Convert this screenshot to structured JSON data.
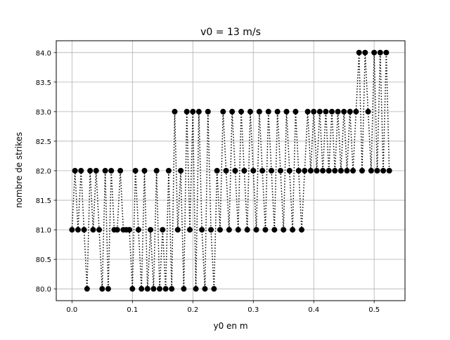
{
  "colors": {
    "marker": "#000000",
    "line": "#000000",
    "grid": "#b0b0b0",
    "axes": "#000000",
    "background": "#ffffff"
  },
  "chart_data": {
    "type": "line",
    "title": "v0 = 13 m/s",
    "xlabel": "y0 en m",
    "ylabel": "nombre de strikes",
    "xlim": [
      -0.026,
      0.551
    ],
    "ylim": [
      79.8,
      84.2
    ],
    "xticks": [
      0.0,
      0.1,
      0.2,
      0.3,
      0.4,
      0.5
    ],
    "xtick_labels": [
      "0.0",
      "0.1",
      "0.2",
      "0.3",
      "0.4",
      "0.5"
    ],
    "yticks": [
      80.0,
      80.5,
      81.0,
      81.5,
      82.0,
      82.5,
      83.0,
      83.5,
      84.0
    ],
    "ytick_labels": [
      "80.0",
      "80.5",
      "81.0",
      "81.5",
      "82.0",
      "82.5",
      "83.0",
      "83.5",
      "84.0"
    ],
    "grid": true,
    "legend": "none",
    "marker": "o",
    "linestyle": "dotted",
    "series": [
      {
        "x": [
          0.0,
          0.005,
          0.01,
          0.015,
          0.02,
          0.025,
          0.03,
          0.035,
          0.04,
          0.045,
          0.05,
          0.055,
          0.06,
          0.065,
          0.07,
          0.075,
          0.08,
          0.085,
          0.09,
          0.095,
          0.1,
          0.105,
          0.11,
          0.115,
          0.12,
          0.125,
          0.13,
          0.135,
          0.14,
          0.145,
          0.15,
          0.155,
          0.16,
          0.165,
          0.17,
          0.175,
          0.18,
          0.185,
          0.19,
          0.195,
          0.2,
          0.205,
          0.21,
          0.215,
          0.22,
          0.225,
          0.23,
          0.235,
          0.24,
          0.245,
          0.25,
          0.255,
          0.26,
          0.265,
          0.27,
          0.275,
          0.28,
          0.285,
          0.29,
          0.295,
          0.3,
          0.305,
          0.31,
          0.315,
          0.32,
          0.325,
          0.33,
          0.335,
          0.34,
          0.345,
          0.35,
          0.355,
          0.36,
          0.365,
          0.37,
          0.375,
          0.38,
          0.385,
          0.39,
          0.395,
          0.4,
          0.405,
          0.41,
          0.415,
          0.42,
          0.425,
          0.43,
          0.435,
          0.44,
          0.445,
          0.45,
          0.455,
          0.46,
          0.465,
          0.47,
          0.475,
          0.48,
          0.485,
          0.49,
          0.495,
          0.5,
          0.505,
          0.51,
          0.515,
          0.52,
          0.525
        ],
        "y": [
          81,
          82,
          81,
          82,
          81,
          80,
          82,
          81,
          82,
          81,
          80,
          82,
          80,
          82,
          81,
          81,
          82,
          81,
          81,
          81,
          80,
          82,
          81,
          80,
          82,
          80,
          81,
          80,
          82,
          80,
          81,
          80,
          82,
          80,
          83,
          81,
          82,
          80,
          83,
          81,
          83,
          80,
          83,
          81,
          80,
          83,
          81,
          80,
          82,
          81,
          83,
          82,
          81,
          83,
          82,
          81,
          83,
          82,
          81,
          83,
          82,
          81,
          83,
          82,
          81,
          83,
          82,
          81,
          83,
          82,
          81,
          83,
          82,
          81,
          83,
          82,
          81,
          82,
          83,
          82,
          83,
          82,
          83,
          82,
          83,
          82,
          83,
          82,
          83,
          82,
          83,
          82,
          83,
          82,
          83,
          84,
          82,
          84,
          83,
          82,
          84,
          82,
          84,
          82,
          84,
          82
        ]
      }
    ]
  }
}
